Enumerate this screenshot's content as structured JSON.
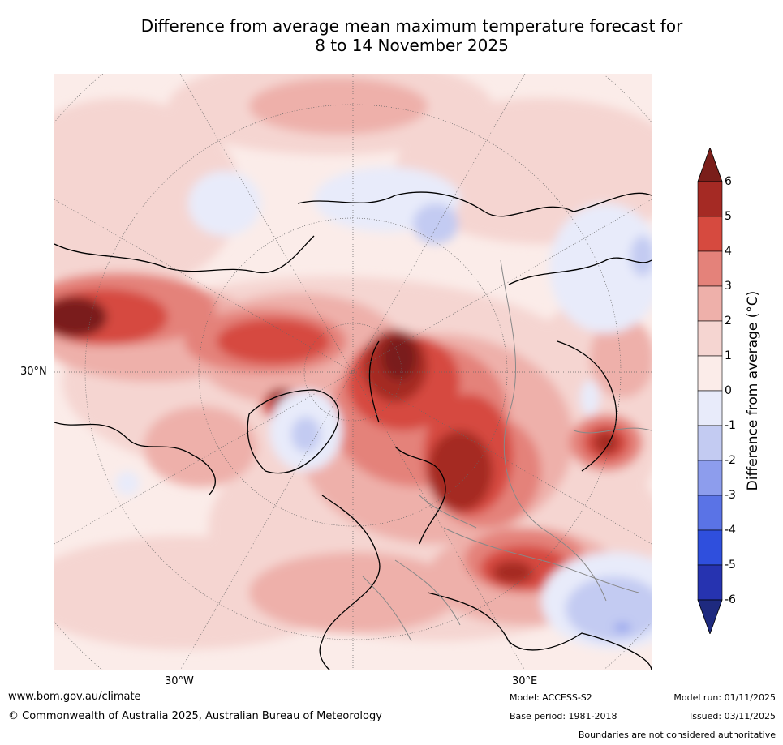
{
  "title_line1": "Difference from average mean maximum temperature forecast for",
  "title_line2": "8 to 14 November 2025",
  "axis_labels": {
    "lat_30n": "30°N",
    "lon_30w": "30°W",
    "lon_30e": "30°E"
  },
  "colorbar": {
    "title": "Difference from average (°C)",
    "ticks": [
      "6",
      "5",
      "4",
      "3",
      "2",
      "1",
      "0",
      "-1",
      "-2",
      "-3",
      "-4",
      "-5",
      "-6"
    ],
    "colors": [
      "#7a1e1a",
      "#a52a24",
      "#d64a3f",
      "#e4827a",
      "#eeb0aa",
      "#f5d5d1",
      "#fbece9",
      "#e8ebfa",
      "#c3cbf2",
      "#8d9ded",
      "#5a73e6",
      "#2f4fdd",
      "#2633b0",
      "#1e2a7f"
    ]
  },
  "footer": {
    "url": "www.bom.gov.au/climate",
    "copyright": "© Commonwealth of Australia 2025, Australian Bureau of Meteorology",
    "model": "Model: ACCESS-S2",
    "base_period": "Base period: 1981-2018",
    "model_run": "Model run: 01/11/2025",
    "issued": "Issued: 03/11/2025",
    "disclaimer": "Boundaries are not considered authoritative"
  }
}
